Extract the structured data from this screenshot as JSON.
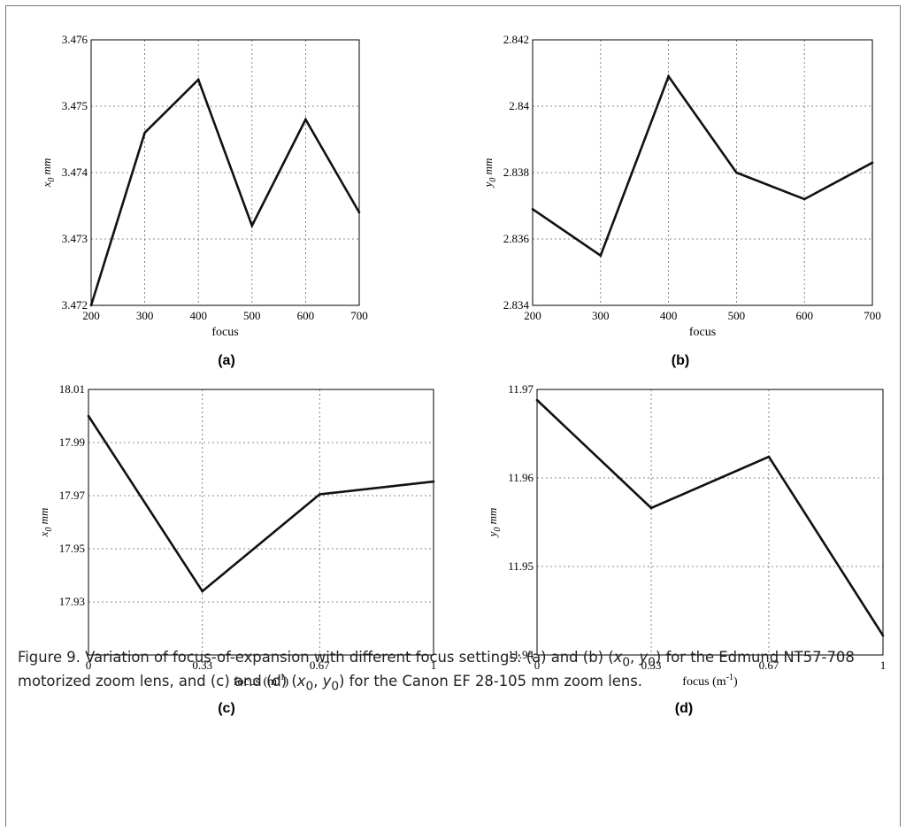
{
  "figure": {
    "caption_parts": [
      "Figure 9. Variation of focus-of-expansion with different focus settings: (a) and (b) (",
      "x",
      "0",
      ", ",
      "y",
      "0",
      ") for the Edmund NT57-708 motorized zoom lens, and (c) and (d) (",
      "x",
      "0",
      ", ",
      "y",
      "0",
      ") for the Canon EF 28-105 mm zoom lens."
    ]
  },
  "chart_data": [
    {
      "id": "a",
      "type": "line",
      "sublabel": "(a)",
      "xlabel": "focus",
      "ylabel": "x0 mm",
      "x": [
        200,
        300,
        400,
        500,
        600,
        700
      ],
      "y": [
        3.472,
        3.4746,
        3.4754,
        3.4732,
        3.4748,
        3.4734
      ],
      "xlim": [
        200,
        700
      ],
      "ylim": [
        3.472,
        3.476
      ],
      "xticks": [
        "200",
        "300",
        "400",
        "500",
        "600",
        "700"
      ],
      "yticks": [
        "3.472",
        "3.473",
        "3.474",
        "3.475",
        "3.476"
      ],
      "grid": true
    },
    {
      "id": "b",
      "type": "line",
      "sublabel": "(b)",
      "xlabel": "focus",
      "ylabel": "y0 mm",
      "x": [
        200,
        300,
        400,
        500,
        600,
        700
      ],
      "y": [
        2.8369,
        2.8355,
        2.8409,
        2.838,
        2.8372,
        2.8383
      ],
      "xlim": [
        200,
        700
      ],
      "ylim": [
        2.834,
        2.842
      ],
      "xticks": [
        "200",
        "300",
        "400",
        "500",
        "600",
        "700"
      ],
      "yticks": [
        "2.834",
        "2.836",
        "2.838",
        "2.84",
        "2.842"
      ],
      "grid": true
    },
    {
      "id": "c",
      "type": "line",
      "sublabel": "(c)",
      "xlabel": "focus (m-1)",
      "ylabel": "x0 mm",
      "x": [
        0,
        0.33,
        0.67,
        1
      ],
      "y": [
        18.0,
        17.934,
        17.9705,
        17.9753
      ],
      "xlim": [
        0,
        1
      ],
      "ylim": [
        17.91,
        18.01
      ],
      "xticks": [
        "0",
        "0.33",
        "0.67",
        "1"
      ],
      "yticks": [
        "17.93",
        "17.95",
        "17.97",
        "17.99",
        "18.01"
      ],
      "grid": true
    },
    {
      "id": "d",
      "type": "line",
      "sublabel": "(d)",
      "xlabel": "focus (m-1)",
      "ylabel": "y0 mm",
      "x": [
        0,
        0.33,
        0.67,
        1
      ],
      "y": [
        11.9688,
        11.9566,
        11.9624,
        11.9422
      ],
      "xlim": [
        0,
        1
      ],
      "ylim": [
        11.94,
        11.97
      ],
      "xticks": [
        "0",
        "0.33",
        "0.67",
        "1"
      ],
      "yticks": [
        "11.94",
        "11.95",
        "11.96",
        "11.97"
      ],
      "grid": true
    }
  ]
}
